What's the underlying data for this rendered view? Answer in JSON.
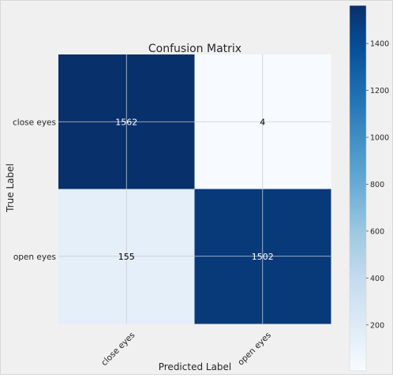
{
  "chart_data": {
    "type": "heatmap",
    "title": "Confusion Matrix",
    "xlabel": "Predicted Label",
    "ylabel": "True Label",
    "x_categories": [
      "close eyes",
      "open eyes"
    ],
    "y_categories": [
      "close eyes",
      "open eyes"
    ],
    "values": [
      [
        1562,
        4
      ],
      [
        155,
        1502
      ]
    ],
    "colorscale": "Blues",
    "color_range": [
      4,
      1562
    ],
    "colorbar_ticks": [
      200,
      400,
      600,
      800,
      1000,
      1200,
      1400
    ],
    "grid": true,
    "colors": {
      "figure_bg": "#f0f0f0",
      "grid": "#c7ccd4",
      "low": "#f7fbff",
      "high": "#08306b"
    }
  }
}
